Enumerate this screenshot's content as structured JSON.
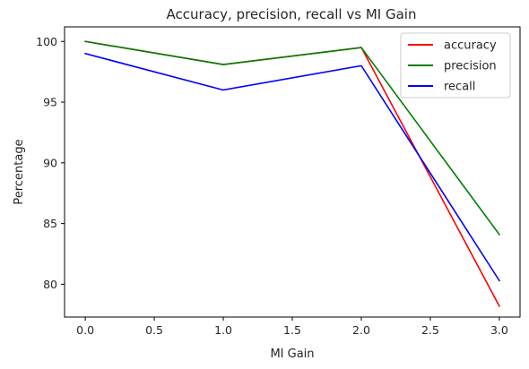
{
  "chart_data": {
    "type": "line",
    "title": "Accuracy, precision, recall vs MI Gain",
    "xlabel": "MI Gain",
    "ylabel": "Percentage",
    "x": [
      0.0,
      1.0,
      2.0,
      3.0
    ],
    "xticks": [
      "0.0",
      "0.5",
      "1.0",
      "1.5",
      "2.0",
      "2.5",
      "3.0"
    ],
    "xtick_values": [
      0.0,
      0.5,
      1.0,
      1.5,
      2.0,
      2.5,
      3.0
    ],
    "yticks": [
      "80",
      "85",
      "90",
      "95",
      "100"
    ],
    "ytick_values": [
      80,
      85,
      90,
      95,
      100
    ],
    "xlim": [
      -0.15,
      3.15
    ],
    "ylim": [
      77.3,
      101.2
    ],
    "grid": false,
    "legend_position": "top-right",
    "series": [
      {
        "name": "accuracy",
        "color": "#ff0000",
        "values": [
          100.0,
          98.1,
          99.5,
          78.2
        ]
      },
      {
        "name": "precision",
        "color": "#008000",
        "values": [
          100.0,
          98.1,
          99.5,
          84.1
        ]
      },
      {
        "name": "recall",
        "color": "#0000ff",
        "values": [
          99.0,
          96.0,
          98.0,
          80.3
        ]
      }
    ]
  }
}
